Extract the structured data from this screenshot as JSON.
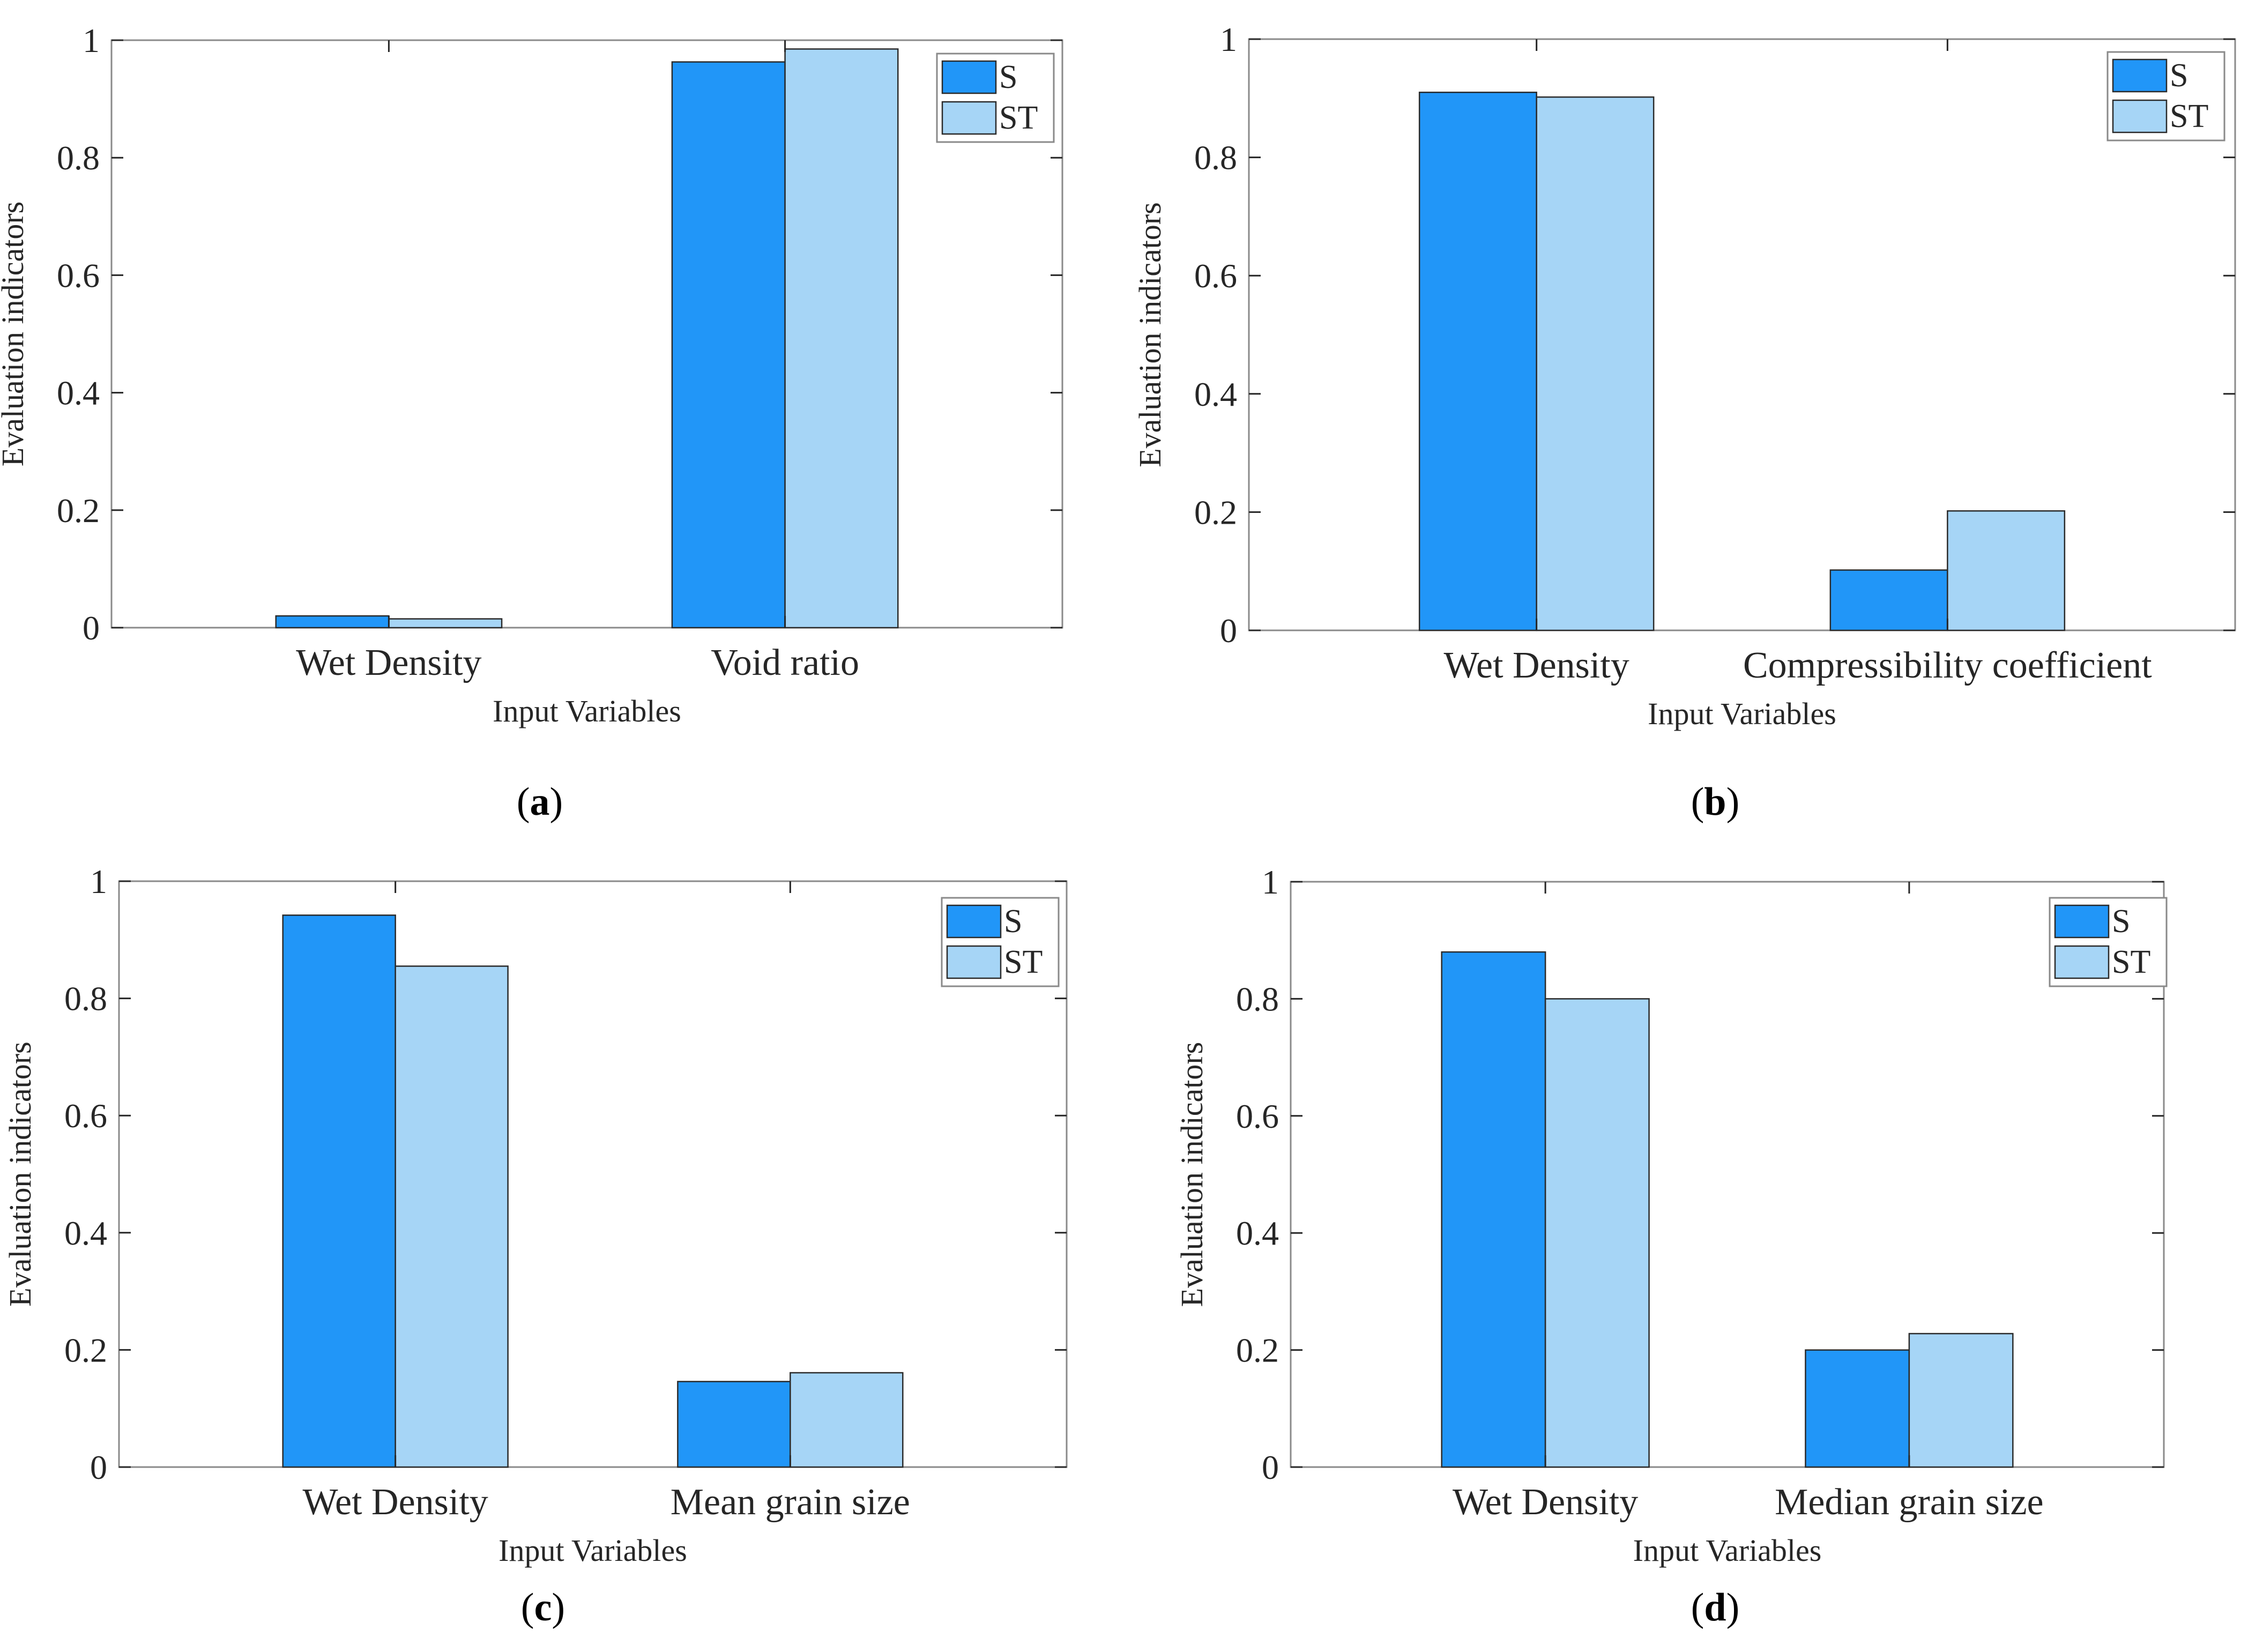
{
  "colors": {
    "s": "#2196F8",
    "st": "#A6D5F6",
    "axis": "#262626",
    "frame": "#8a8a8a"
  },
  "figure": {
    "y_tick_labels": [
      "0",
      "0.2",
      "0.4",
      "0.6",
      "0.8",
      "1"
    ],
    "caption_paren_open": "(",
    "caption_paren_close": ")"
  },
  "chart_data": [
    {
      "type": "bar",
      "panel": "a",
      "categories": [
        "Wet Density",
        "Void ratio"
      ],
      "series": [
        {
          "name": "S",
          "values": [
            0.02,
            0.963
          ]
        },
        {
          "name": "ST",
          "values": [
            0.015,
            0.985
          ]
        }
      ],
      "xlabel": "Input Variables",
      "ylabel": "Evaluation indicators",
      "ylim": [
        0,
        1
      ],
      "legend": "top-right",
      "grid": false
    },
    {
      "type": "bar",
      "panel": "b",
      "categories": [
        "Wet Density",
        "Compressibility coefficient"
      ],
      "series": [
        {
          "name": "S",
          "values": [
            0.91,
            0.102
          ]
        },
        {
          "name": "ST",
          "values": [
            0.902,
            0.202
          ]
        }
      ],
      "xlabel": "Input Variables",
      "ylabel": "Evaluation indicators",
      "ylim": [
        0,
        1
      ],
      "legend": "top-right",
      "grid": false
    },
    {
      "type": "bar",
      "panel": "c",
      "categories": [
        "Wet Density",
        "Mean grain size"
      ],
      "series": [
        {
          "name": "S",
          "values": [
            0.942,
            0.146
          ]
        },
        {
          "name": "ST",
          "values": [
            0.855,
            0.161
          ]
        }
      ],
      "xlabel": "Input Variables",
      "ylabel": "Evaluation indicators",
      "ylim": [
        0,
        1
      ],
      "legend": "top-right",
      "grid": false
    },
    {
      "type": "bar",
      "panel": "d",
      "categories": [
        "Wet Density",
        "Median grain size"
      ],
      "series": [
        {
          "name": "S",
          "values": [
            0.88,
            0.2
          ]
        },
        {
          "name": "ST",
          "values": [
            0.8,
            0.228
          ]
        }
      ],
      "xlabel": "Input Variables",
      "ylabel": "Evaluation indicators",
      "ylim": [
        0,
        1
      ],
      "legend": "top-right",
      "grid": false
    }
  ]
}
